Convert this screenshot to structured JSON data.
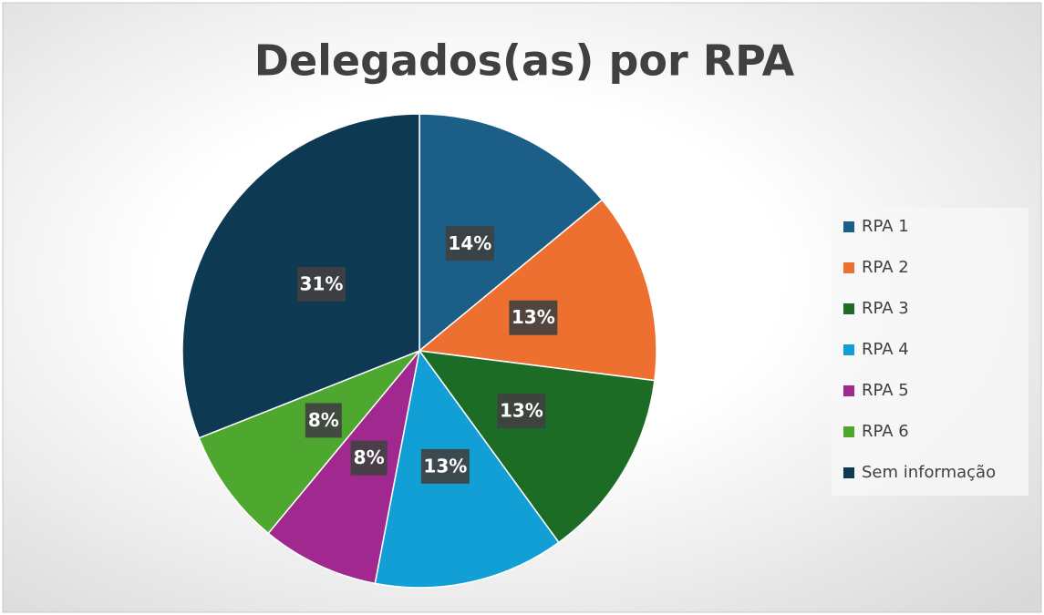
{
  "chart_data": {
    "type": "pie",
    "title": "Delegados(as) por RPA",
    "categories": [
      "RPA 1",
      "RPA 2",
      "RPA 3",
      "RPA 4",
      "RPA 5",
      "RPA 6",
      "Sem informação"
    ],
    "values": [
      14,
      13,
      13,
      13,
      8,
      8,
      31
    ],
    "value_labels": [
      "14%",
      "13%",
      "13%",
      "13%",
      "8%",
      "8%",
      "31%"
    ],
    "colors": [
      "#1b5e88",
      "#ed7031",
      "#1d6c25",
      "#119fd6",
      "#a0288f",
      "#4ea72e",
      "#0d3952"
    ],
    "legend": "right"
  }
}
